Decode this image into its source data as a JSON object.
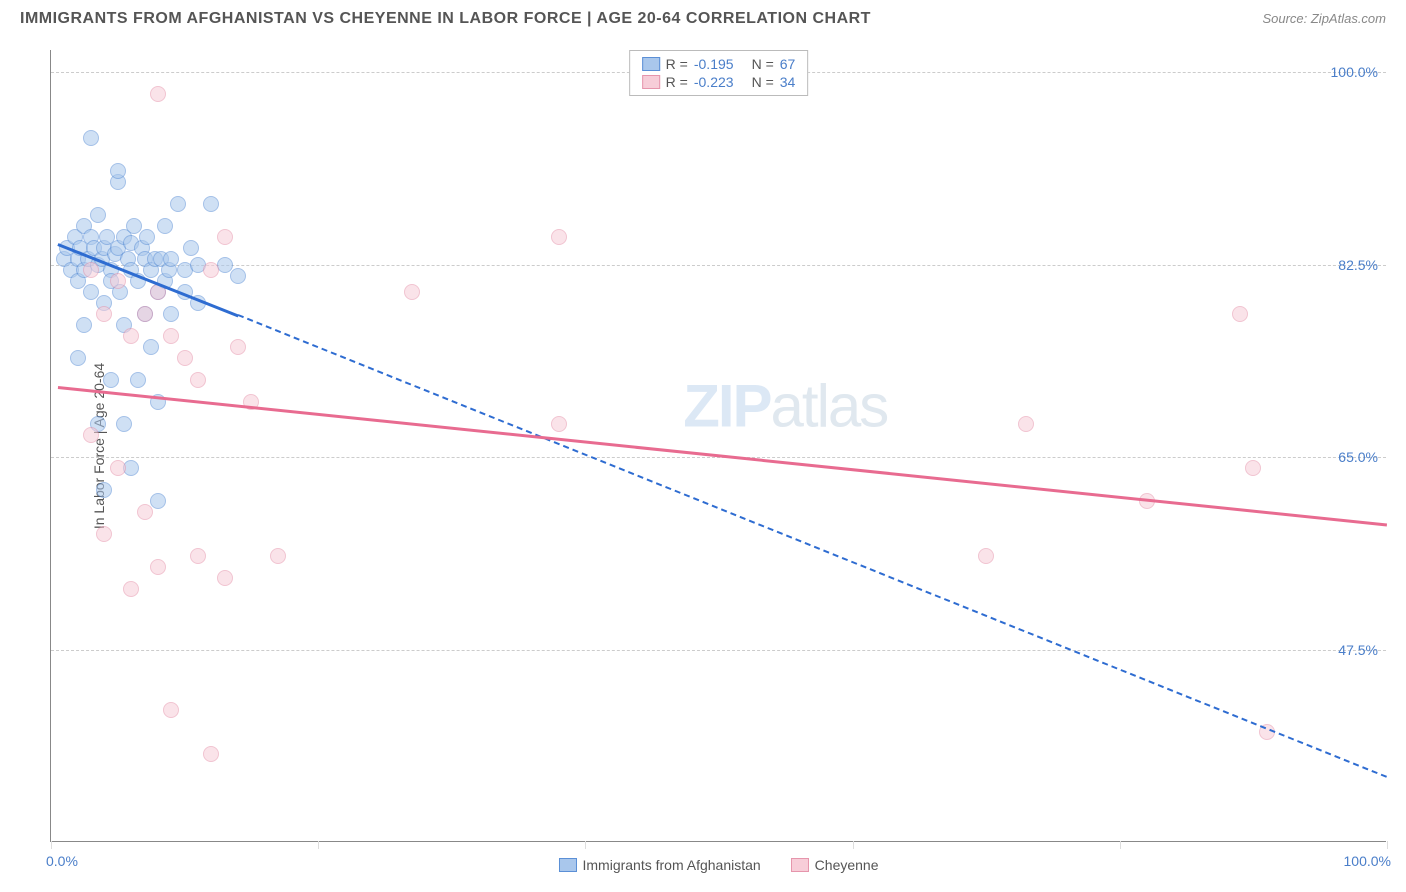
{
  "title": "IMMIGRANTS FROM AFGHANISTAN VS CHEYENNE IN LABOR FORCE | AGE 20-64 CORRELATION CHART",
  "source_label": "Source: ",
  "source_value": "ZipAtlas.com",
  "watermark_bold": "ZIP",
  "watermark_thin": "atlas",
  "chart": {
    "type": "scatter",
    "background_color": "#ffffff",
    "grid_color": "#cccccc",
    "axis_color": "#888888",
    "xlim": [
      0,
      100
    ],
    "ylim": [
      30,
      102
    ],
    "x_ticks": [
      0,
      20,
      40,
      60,
      80,
      100
    ],
    "x_tick_labels": [
      "0.0%",
      "",
      "",
      "",
      "",
      "100.0%"
    ],
    "y_gridlines": [
      47.5,
      65.0,
      82.5,
      100.0
    ],
    "y_tick_labels": [
      "47.5%",
      "65.0%",
      "82.5%",
      "100.0%"
    ],
    "y_axis_label": "In Labor Force | Age 20-64",
    "point_radius": 8,
    "point_opacity": 0.55,
    "series": [
      {
        "name": "Immigrants from Afghanistan",
        "fill": "#a9c7ec",
        "stroke": "#5b8fd6",
        "trend_color": "#2e6cd1",
        "trend_solid": {
          "x1": 0.5,
          "y1": 84.5,
          "x2": 14,
          "y2": 78
        },
        "trend_dash": {
          "x1": 14,
          "y1": 78,
          "x2": 100,
          "y2": 36
        },
        "R_label": "R = ",
        "R_val": "-0.195",
        "N_label": "N = ",
        "N_val": "67",
        "points": [
          [
            1,
            83
          ],
          [
            1.2,
            84
          ],
          [
            1.5,
            82
          ],
          [
            1.8,
            85
          ],
          [
            2,
            83
          ],
          [
            2,
            81
          ],
          [
            2.2,
            84
          ],
          [
            2.5,
            86
          ],
          [
            2.5,
            82
          ],
          [
            2.8,
            83
          ],
          [
            3,
            85
          ],
          [
            3,
            80
          ],
          [
            3.2,
            84
          ],
          [
            3.5,
            82.5
          ],
          [
            3.5,
            87
          ],
          [
            3.8,
            83
          ],
          [
            4,
            84
          ],
          [
            4,
            79
          ],
          [
            4.2,
            85
          ],
          [
            4.5,
            82
          ],
          [
            4.5,
            81
          ],
          [
            4.8,
            83.5
          ],
          [
            5,
            84
          ],
          [
            5,
            90
          ],
          [
            5.2,
            80
          ],
          [
            5.5,
            85
          ],
          [
            5.5,
            77
          ],
          [
            5.8,
            83
          ],
          [
            6,
            84.5
          ],
          [
            6,
            82
          ],
          [
            6.2,
            86
          ],
          [
            6.5,
            81
          ],
          [
            6.5,
            72
          ],
          [
            6.8,
            84
          ],
          [
            7,
            83
          ],
          [
            7,
            78
          ],
          [
            7.2,
            85
          ],
          [
            7.5,
            82
          ],
          [
            7.5,
            75
          ],
          [
            7.8,
            83
          ],
          [
            8,
            80
          ],
          [
            8,
            70
          ],
          [
            8.2,
            83
          ],
          [
            8.5,
            81
          ],
          [
            8.5,
            86
          ],
          [
            8.8,
            82
          ],
          [
            9,
            83
          ],
          [
            9,
            78
          ],
          [
            9.5,
            88
          ],
          [
            10,
            80
          ],
          [
            10,
            82
          ],
          [
            10.5,
            84
          ],
          [
            11,
            82.5
          ],
          [
            11,
            79
          ],
          [
            3,
            94
          ],
          [
            5,
            91
          ],
          [
            12,
            88
          ],
          [
            13,
            82.5
          ],
          [
            14,
            81.5
          ],
          [
            2,
            74
          ],
          [
            3.5,
            68
          ],
          [
            4,
            62
          ],
          [
            8,
            61
          ],
          [
            6,
            64
          ],
          [
            2.5,
            77
          ],
          [
            4.5,
            72
          ],
          [
            5.5,
            68
          ]
        ]
      },
      {
        "name": "Cheyenne",
        "fill": "#f7cdd8",
        "stroke": "#e695ac",
        "trend_color": "#e86b90",
        "trend_solid": {
          "x1": 0.5,
          "y1": 71.5,
          "x2": 100,
          "y2": 59
        },
        "trend_dash": null,
        "R_label": "R = ",
        "R_val": "-0.223",
        "N_label": "N = ",
        "N_val": "34",
        "points": [
          [
            8,
            98
          ],
          [
            3,
            82
          ],
          [
            4,
            78
          ],
          [
            5,
            81
          ],
          [
            6,
            76
          ],
          [
            7,
            78
          ],
          [
            8,
            80
          ],
          [
            9,
            76
          ],
          [
            10,
            74
          ],
          [
            11,
            72
          ],
          [
            12,
            82
          ],
          [
            13,
            85
          ],
          [
            14,
            75
          ],
          [
            15,
            70
          ],
          [
            11,
            56
          ],
          [
            13,
            54
          ],
          [
            17,
            56
          ],
          [
            8,
            55
          ],
          [
            5,
            64
          ],
          [
            7,
            60
          ],
          [
            3,
            67
          ],
          [
            4,
            58
          ],
          [
            6,
            53
          ],
          [
            9,
            42
          ],
          [
            12,
            38
          ],
          [
            27,
            80
          ],
          [
            38,
            85
          ],
          [
            38,
            68
          ],
          [
            70,
            56
          ],
          [
            73,
            68
          ],
          [
            89,
            78
          ],
          [
            90,
            64
          ],
          [
            91,
            40
          ],
          [
            82,
            61
          ]
        ]
      }
    ]
  }
}
